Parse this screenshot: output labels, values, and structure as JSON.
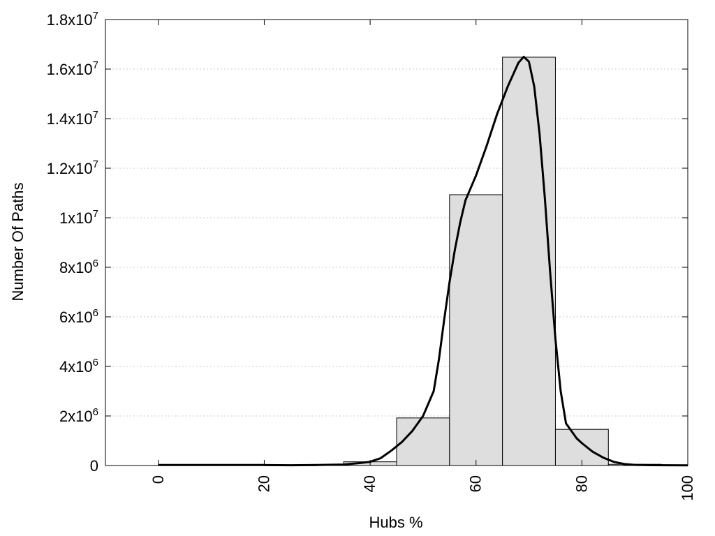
{
  "chart_data": {
    "type": "bar",
    "xlabel": "Hubs %",
    "ylabel": "Number Of Paths",
    "xlim": [
      -10,
      100
    ],
    "ylim": [
      0,
      18000000
    ],
    "grid": {
      "y": true,
      "x": false
    },
    "x_ticks": [
      {
        "value": 0,
        "label": "0"
      },
      {
        "value": 20,
        "label": "20"
      },
      {
        "value": 40,
        "label": "40"
      },
      {
        "value": 60,
        "label": "60"
      },
      {
        "value": 80,
        "label": "80"
      },
      {
        "value": 100,
        "label": "100"
      }
    ],
    "y_ticks": [
      {
        "value": 0,
        "mantissa": "0",
        "exponent": ""
      },
      {
        "value": 2000000,
        "mantissa": "2x10",
        "exponent": "6"
      },
      {
        "value": 4000000,
        "mantissa": "4x10",
        "exponent": "6"
      },
      {
        "value": 6000000,
        "mantissa": "6x10",
        "exponent": "6"
      },
      {
        "value": 8000000,
        "mantissa": "8x10",
        "exponent": "6"
      },
      {
        "value": 10000000,
        "mantissa": "1x10",
        "exponent": "7"
      },
      {
        "value": 12000000,
        "mantissa": "1.2x10",
        "exponent": "7"
      },
      {
        "value": 14000000,
        "mantissa": "1.4x10",
        "exponent": "7"
      },
      {
        "value": 16000000,
        "mantissa": "1.6x10",
        "exponent": "7"
      },
      {
        "value": 18000000,
        "mantissa": "1.8x10",
        "exponent": "7"
      }
    ],
    "bins": [
      {
        "x0": 0,
        "x1": 10,
        "value": 20000
      },
      {
        "x0": 10,
        "x1": 20,
        "value": 20000
      },
      {
        "x0": 20,
        "x1": 30,
        "value": 10000
      },
      {
        "x0": 30,
        "x1": 35,
        "value": 20000
      },
      {
        "x0": 35,
        "x1": 45,
        "value": 150000
      },
      {
        "x0": 45,
        "x1": 55,
        "value": 1920000
      },
      {
        "x0": 55,
        "x1": 65,
        "value": 10930000
      },
      {
        "x0": 65,
        "x1": 75,
        "value": 16480000
      },
      {
        "x0": 75,
        "x1": 85,
        "value": 1460000
      },
      {
        "x0": 85,
        "x1": 95,
        "value": 50000
      }
    ],
    "curve": {
      "x": [
        0,
        10,
        20,
        25,
        30,
        35,
        38,
        40,
        42,
        44,
        46,
        48,
        50,
        52,
        53,
        54,
        55,
        56,
        57,
        58,
        59,
        60,
        62,
        64,
        66,
        68,
        69,
        70,
        71,
        72,
        73,
        74,
        75,
        76,
        77,
        78,
        79,
        80,
        82,
        84,
        86,
        88,
        90,
        93,
        96,
        100
      ],
      "y": [
        20000,
        20000,
        20000,
        10000,
        20000,
        40000,
        100000,
        150000,
        300000,
        600000,
        950000,
        1400000,
        2000000,
        3000000,
        4300000,
        5900000,
        7400000,
        8700000,
        9800000,
        10700000,
        11200000,
        11700000,
        12900000,
        14200000,
        15300000,
        16250000,
        16500000,
        16300000,
        15300000,
        13400000,
        10800000,
        7800000,
        5100000,
        3000000,
        1700000,
        1400000,
        1100000,
        900000,
        560000,
        320000,
        150000,
        60000,
        25000,
        15000,
        10000,
        5000
      ]
    }
  }
}
